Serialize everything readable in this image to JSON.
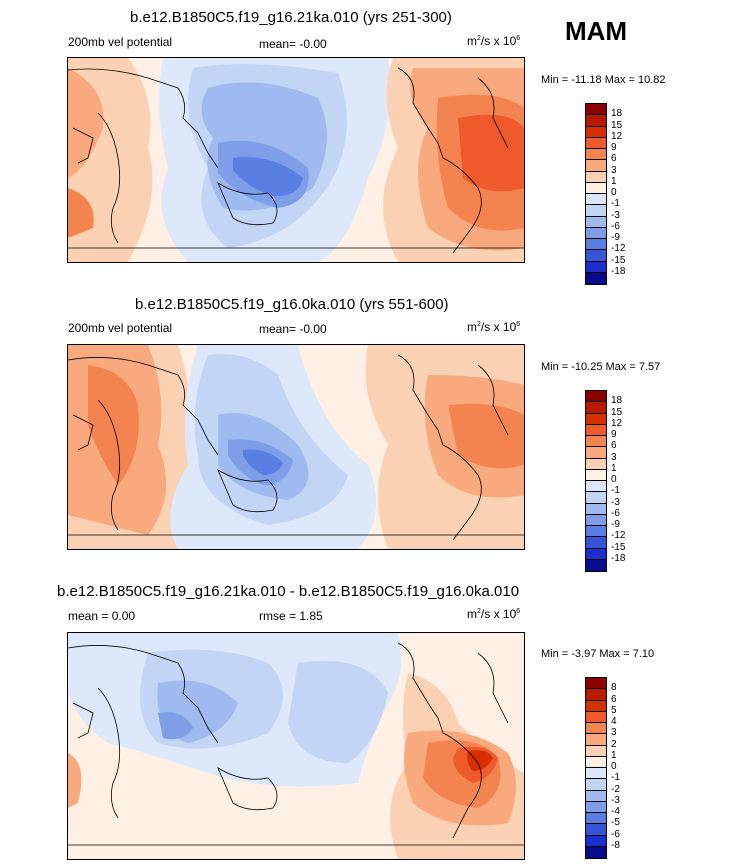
{
  "season": "MAM",
  "units_prefix": "m",
  "units_suffix": "/s x 10",
  "panels": [
    {
      "title": "b.e12.B1850C5.f19_g16.21ka.010 (yrs 251-300)",
      "left_label": "200mb vel potential",
      "center_label": "mean=  -0.00",
      "min_max": "Min = -11.18 Max =  10.82",
      "legend_labels": [
        "18",
        "15",
        "12",
        "9",
        "6",
        "3",
        "1",
        "0",
        "-1",
        "-3",
        "-6",
        "-9",
        "-12",
        "-15",
        "-18"
      ],
      "legend_colors": [
        "#8b0000",
        "#b81a00",
        "#d73000",
        "#ee5a2c",
        "#f4844f",
        "#f8a97d",
        "#fbd1b3",
        "#fef0e4",
        "#dde8fa",
        "#c2d5f5",
        "#9fbaee",
        "#7e9ee8",
        "#5a7ee2",
        "#3656d8",
        "#1c2ecb",
        "#0a0a8c"
      ]
    },
    {
      "title": "b.e12.B1850C5.f19_g16.0ka.010 (yrs 551-600)",
      "left_label": "200mb vel potential",
      "center_label": "mean=  -0.00",
      "min_max": "Min = -10.25 Max =   7.57",
      "legend_labels": [
        "18",
        "15",
        "12",
        "9",
        "6",
        "3",
        "1",
        "0",
        "-1",
        "-3",
        "-6",
        "-9",
        "-12",
        "-15",
        "-18"
      ],
      "legend_colors": [
        "#8b0000",
        "#b81a00",
        "#d73000",
        "#ee5a2c",
        "#f4844f",
        "#f8a97d",
        "#fbd1b3",
        "#fef0e4",
        "#dde8fa",
        "#c2d5f5",
        "#9fbaee",
        "#7e9ee8",
        "#5a7ee2",
        "#3656d8",
        "#1c2ecb",
        "#0a0a8c"
      ]
    },
    {
      "title": "b.e12.B1850C5.f19_g16.21ka.010 - b.e12.B1850C5.f19_g16.0ka.010",
      "left_label": "mean =   0.00",
      "center_label": "rmse =   1.85",
      "min_max": "Min =  -3.97 Max =   7.10",
      "legend_labels": [
        "8",
        "6",
        "5",
        "4",
        "3",
        "2",
        "1",
        "0",
        "-1",
        "-2",
        "-3",
        "-4",
        "-5",
        "-6",
        "-8"
      ],
      "legend_colors": [
        "#8b0000",
        "#b81a00",
        "#d73000",
        "#ee5a2c",
        "#f4844f",
        "#f8a97d",
        "#fbd1b3",
        "#fef0e4",
        "#dde8fa",
        "#c2d5f5",
        "#9fbaee",
        "#7e9ee8",
        "#5a7ee2",
        "#3656d8",
        "#1c2ecb",
        "#0a0a8c"
      ]
    }
  ],
  "chart_data": [
    {
      "type": "heatmap",
      "title": "b.e12.B1850C5.f19_g16.21ka.010 (yrs 251-300)",
      "variable": "200mb vel potential",
      "units": "m2/s x 10^6",
      "mean": -0.0,
      "min": -11.18,
      "max": 10.82,
      "contour_levels": [
        -18,
        -15,
        -12,
        -9,
        -6,
        -3,
        -1,
        0,
        1,
        3,
        6,
        9,
        12,
        15,
        18
      ]
    },
    {
      "type": "heatmap",
      "title": "b.e12.B1850C5.f19_g16.0ka.010 (yrs 551-600)",
      "variable": "200mb vel potential",
      "units": "m2/s x 10^6",
      "mean": -0.0,
      "min": -10.25,
      "max": 7.57,
      "contour_levels": [
        -18,
        -15,
        -12,
        -9,
        -6,
        -3,
        -1,
        0,
        1,
        3,
        6,
        9,
        12,
        15,
        18
      ]
    },
    {
      "type": "heatmap",
      "title": "b.e12.B1850C5.f19_g16.21ka.010 - b.e12.B1850C5.f19_g16.0ka.010",
      "units": "m2/s x 10^6",
      "mean": 0.0,
      "rmse": 1.85,
      "min": -3.97,
      "max": 7.1,
      "contour_levels": [
        -8,
        -6,
        -5,
        -4,
        -3,
        -2,
        -1,
        0,
        1,
        2,
        3,
        4,
        5,
        6,
        8
      ]
    }
  ]
}
